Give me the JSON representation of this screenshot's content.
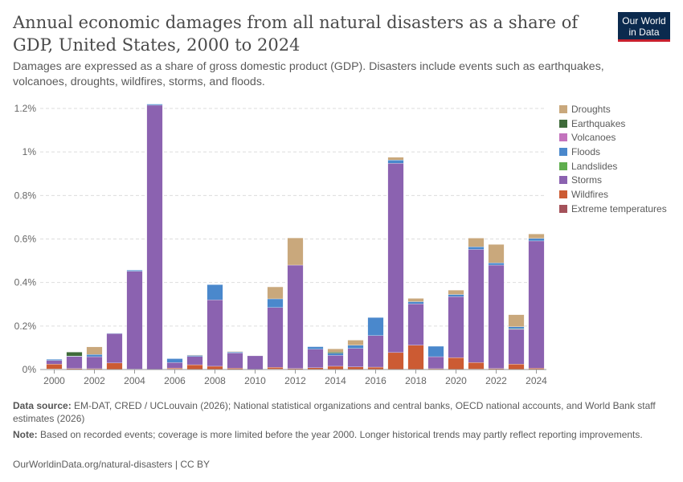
{
  "header": {
    "title": "Annual economic damages from all natural disasters as a share of GDP, United States, 2000 to 2024",
    "subtitle": "Damages are expressed as a share of gross domestic product (GDP). Disasters include events such as earthquakes, volcanoes, droughts, wildfires, storms, and floods.",
    "logo_line1": "Our World",
    "logo_line2": "in Data"
  },
  "footer": {
    "source_label": "Data source:",
    "source_text": "EM-DAT, CRED / UCLouvain (2026); National statistical organizations and central banks, OECD national accounts, and World Bank staff estimates (2026)",
    "note_label": "Note:",
    "note_text": "Based on recorded events; coverage is more limited before the year 2000. Longer historical trends may partly reflect reporting improvements.",
    "url": "OurWorldinData.org/natural-disasters | CC BY"
  },
  "chart_data": {
    "type": "bar",
    "stacked": true,
    "x": [
      2000,
      2001,
      2002,
      2003,
      2004,
      2005,
      2006,
      2007,
      2008,
      2009,
      2010,
      2011,
      2012,
      2013,
      2014,
      2015,
      2016,
      2017,
      2018,
      2019,
      2020,
      2021,
      2022,
      2023,
      2024
    ],
    "x_tick_labels": [
      "2000",
      "2002",
      "2004",
      "2006",
      "2008",
      "2010",
      "2012",
      "2014",
      "2016",
      "2018",
      "2020",
      "2022",
      "2024"
    ],
    "y_tick_labels": [
      "0%",
      "0.2%",
      "0.4%",
      "0.6%",
      "0.8%",
      "1%",
      "1.2%"
    ],
    "ylim": [
      0,
      1.2
    ],
    "y_unit": "%",
    "grid": true,
    "legend_position": "right",
    "series": [
      {
        "name": "Extreme temperatures",
        "color": "#a2559c",
        "values": [
          0.003,
          0,
          0,
          0,
          0,
          0,
          0.002,
          0,
          0,
          0,
          0,
          0.002,
          0,
          0,
          0,
          0,
          0.001,
          0,
          0,
          0,
          0,
          0.002,
          0,
          0,
          0
        ]
      },
      {
        "name": "Wildfires",
        "color": "#c05917",
        "values": [
          0.022,
          0.005,
          0.004,
          0.03,
          0.002,
          0,
          0.005,
          0.022,
          0.015,
          0.006,
          0,
          0.008,
          0.005,
          0.008,
          0.015,
          0.012,
          0.01,
          0.078,
          0.112,
          0.004,
          0.055,
          0.03,
          0.005,
          0.025,
          0.006
        ]
      },
      {
        "name": "Storms",
        "color": "#6d3e91",
        "values": [
          0.017,
          0.055,
          0.055,
          0.135,
          0.45,
          1.215,
          0.025,
          0.038,
          0.305,
          0.07,
          0.063,
          0.275,
          0.475,
          0.085,
          0.05,
          0.085,
          0.145,
          0.87,
          0.19,
          0.055,
          0.28,
          0.52,
          0.475,
          0.16,
          0.585
        ]
      },
      {
        "name": "Landslides",
        "color": "#58ac8c",
        "values": [
          0,
          0,
          0,
          0,
          0,
          0,
          0,
          0,
          0,
          0,
          0,
          0,
          0,
          0,
          0,
          0,
          0,
          0,
          0,
          0,
          0,
          0,
          0,
          0.002,
          0
        ]
      },
      {
        "name": "Floods",
        "color": "#286bbb",
        "values": [
          0.005,
          0.002,
          0.01,
          0.002,
          0.005,
          0.005,
          0.018,
          0.005,
          0.07,
          0.005,
          0,
          0.04,
          0,
          0.012,
          0.01,
          0.015,
          0.083,
          0.015,
          0.01,
          0.048,
          0.01,
          0.012,
          0.01,
          0.01,
          0.012
        ]
      },
      {
        "name": "Volcanoes",
        "color": "#b13507",
        "values": [
          0,
          0,
          0,
          0,
          0,
          0,
          0,
          0,
          0,
          0,
          0,
          0,
          0,
          0,
          0,
          0,
          0,
          0,
          0,
          0,
          0,
          0,
          0,
          0,
          0
        ]
      },
      {
        "name": "Earthquakes",
        "color": "#38aaba",
        "values": [
          0,
          0.018,
          0,
          0,
          0,
          0,
          0,
          0,
          0,
          0,
          0,
          0,
          0,
          0,
          0.005,
          0,
          0,
          0,
          0,
          0,
          0,
          0,
          0,
          0,
          0
        ]
      },
      {
        "name": "Droughts",
        "color": "#883039",
        "values": [
          0,
          0,
          0.035,
          0,
          0,
          0,
          0,
          0.002,
          0,
          0.002,
          0,
          0.055,
          0.125,
          0,
          0.015,
          0.023,
          0,
          0.013,
          0.015,
          0,
          0.02,
          0.04,
          0.085,
          0.055,
          0.02
        ]
      }
    ],
    "legend": [
      {
        "name": "Droughts",
        "color": "#c9a87c"
      },
      {
        "name": "Earthquakes",
        "color": "#3f6b3a"
      },
      {
        "name": "Volcanoes",
        "color": "#c373bd"
      },
      {
        "name": "Floods",
        "color": "#4a88cc"
      },
      {
        "name": "Landslides",
        "color": "#5fae4e"
      },
      {
        "name": "Storms",
        "color": "#8b62b0"
      },
      {
        "name": "Wildfires",
        "color": "#cc5b33"
      },
      {
        "name": "Extreme temperatures",
        "color": "#a4525a"
      }
    ]
  }
}
